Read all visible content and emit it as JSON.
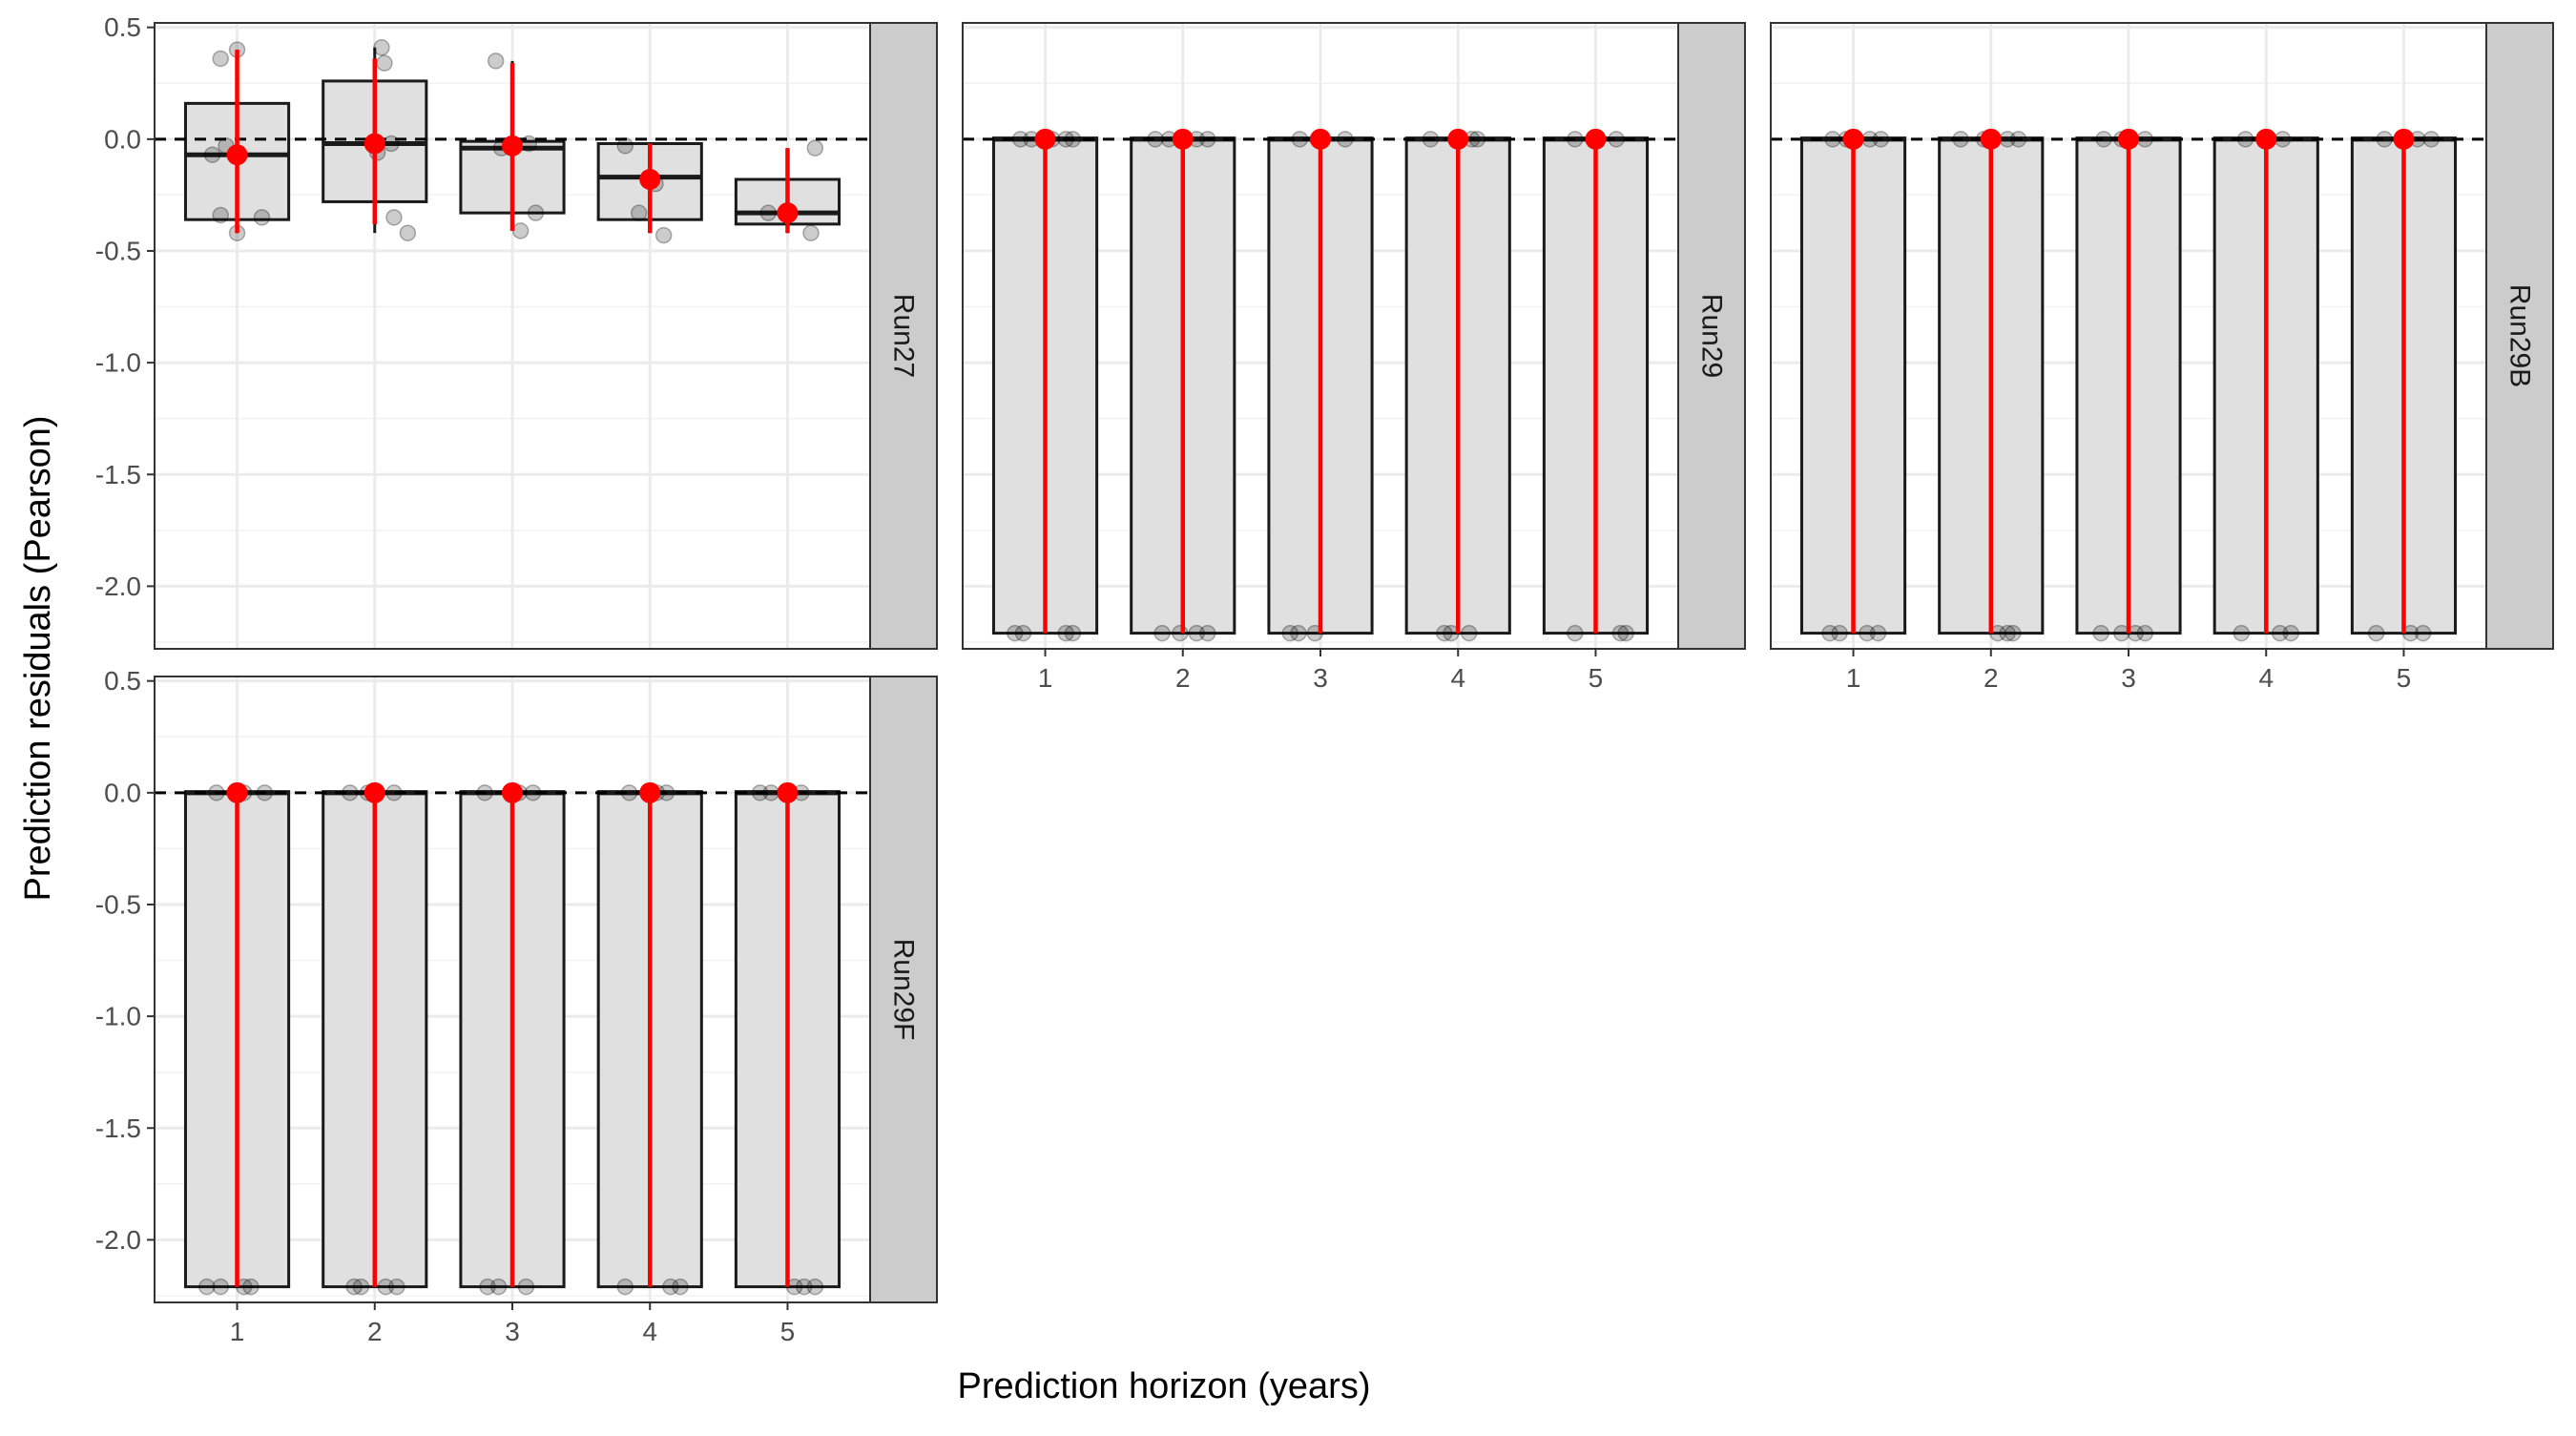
{
  "chart_data": {
    "type": "boxplot",
    "xlabel": "Prediction horizon (years)",
    "ylabel": "Prediction residuals (Pearson)",
    "x": [
      1,
      2,
      3,
      4,
      5
    ],
    "x_tick_labels": [
      "1",
      "2",
      "3",
      "4",
      "5"
    ],
    "ylim": [
      -2.28,
      0.52
    ],
    "y_ticks": [
      0.5,
      0.0,
      -0.5,
      -1.0,
      -1.5,
      -2.0
    ],
    "y_tick_labels": [
      "0.5",
      "0.0",
      "-0.5",
      "-1.0",
      "-1.5",
      "-2.0"
    ],
    "reference_line_y": 0,
    "grid": true,
    "colors": {
      "box_fill": "#e0e0e0",
      "box_stroke": "#1a1a1a",
      "mean_point": "#ff0000",
      "error_bar": "#ff0000",
      "points": "#000000",
      "strip_fill": "#cccccc",
      "grid": "#ebebeb"
    },
    "panels": [
      {
        "label": "Run27",
        "boxes": [
          {
            "x": 1,
            "q1": -0.36,
            "median": -0.07,
            "q3": 0.16,
            "whisker_low": -0.42,
            "whisker_high": 0.4
          },
          {
            "x": 2,
            "q1": -0.28,
            "median": -0.02,
            "q3": 0.26,
            "whisker_low": -0.42,
            "whisker_high": 0.41
          },
          {
            "x": 3,
            "q1": -0.33,
            "median": -0.04,
            "q3": -0.01,
            "whisker_low": -0.41,
            "whisker_high": 0.35
          },
          {
            "x": 4,
            "q1": -0.36,
            "median": -0.17,
            "q3": -0.02,
            "whisker_low": -0.42,
            "whisker_high": -0.02
          },
          {
            "x": 5,
            "q1": -0.38,
            "median": -0.33,
            "q3": -0.18,
            "whisker_low": -0.42,
            "whisker_high": -0.04
          }
        ],
        "means": [
          {
            "x": 1,
            "mean": -0.07,
            "low": -0.42,
            "high": 0.4
          },
          {
            "x": 2,
            "mean": -0.02,
            "low": -0.38,
            "high": 0.36
          },
          {
            "x": 3,
            "mean": -0.03,
            "low": -0.41,
            "high": 0.34
          },
          {
            "x": 4,
            "mean": -0.18,
            "low": -0.42,
            "high": -0.02
          },
          {
            "x": 5,
            "mean": -0.33,
            "low": -0.42,
            "high": -0.04
          }
        ],
        "points": [
          {
            "x": 0.88,
            "y": 0.36
          },
          {
            "x": 1.0,
            "y": 0.4
          },
          {
            "x": 0.82,
            "y": -0.07
          },
          {
            "x": 0.92,
            "y": -0.03
          },
          {
            "x": 0.88,
            "y": -0.34
          },
          {
            "x": 1.0,
            "y": -0.42
          },
          {
            "x": 1.18,
            "y": -0.35
          },
          {
            "x": 2.05,
            "y": 0.41
          },
          {
            "x": 2.07,
            "y": 0.34
          },
          {
            "x": 2.14,
            "y": -0.35
          },
          {
            "x": 2.24,
            "y": -0.42
          },
          {
            "x": 2.12,
            "y": -0.02
          },
          {
            "x": 2.02,
            "y": -0.06
          },
          {
            "x": 2.88,
            "y": 0.35
          },
          {
            "x": 2.92,
            "y": -0.04
          },
          {
            "x": 3.06,
            "y": -0.41
          },
          {
            "x": 3.17,
            "y": -0.33
          },
          {
            "x": 3.12,
            "y": -0.02
          },
          {
            "x": 3.82,
            "y": -0.03
          },
          {
            "x": 3.92,
            "y": -0.33
          },
          {
            "x": 4.1,
            "y": -0.43
          },
          {
            "x": 4.04,
            "y": -0.2
          },
          {
            "x": 4.86,
            "y": -0.33
          },
          {
            "x": 5.0,
            "y": -0.34
          },
          {
            "x": 5.17,
            "y": -0.42
          },
          {
            "x": 5.2,
            "y": -0.04
          }
        ]
      },
      {
        "label": "Run29",
        "boxes": [
          {
            "x": 1,
            "q1": -2.21,
            "median": 0.0,
            "q3": 0.005,
            "whisker_low": -2.21,
            "whisker_high": 0.005
          },
          {
            "x": 2,
            "q1": -2.21,
            "median": 0.0,
            "q3": 0.005,
            "whisker_low": -2.21,
            "whisker_high": 0.005
          },
          {
            "x": 3,
            "q1": -2.21,
            "median": 0.0,
            "q3": 0.005,
            "whisker_low": -2.21,
            "whisker_high": 0.005
          },
          {
            "x": 4,
            "q1": -2.21,
            "median": 0.0,
            "q3": 0.005,
            "whisker_low": -2.21,
            "whisker_high": 0.005
          },
          {
            "x": 5,
            "q1": -2.21,
            "median": 0.0,
            "q3": 0.005,
            "whisker_low": -2.21,
            "whisker_high": 0.005
          }
        ],
        "means": [
          {
            "x": 1,
            "mean": 0.0,
            "low": -2.21,
            "high": 0.0
          },
          {
            "x": 2,
            "mean": 0.0,
            "low": -2.21,
            "high": 0.0
          },
          {
            "x": 3,
            "mean": 0.0,
            "low": -2.21,
            "high": 0.0
          },
          {
            "x": 4,
            "mean": 0.0,
            "low": -2.21,
            "high": 0.0
          },
          {
            "x": 5,
            "mean": 0.0,
            "low": -2.21,
            "high": 0.0
          }
        ],
        "points": [
          {
            "x": 0.82,
            "y": 0.0
          },
          {
            "x": 0.9,
            "y": 0.0
          },
          {
            "x": 1.05,
            "y": 0.0
          },
          {
            "x": 1.15,
            "y": 0.0
          },
          {
            "x": 1.2,
            "y": 0.0
          },
          {
            "x": 0.78,
            "y": -2.21
          },
          {
            "x": 0.84,
            "y": -2.21
          },
          {
            "x": 1.15,
            "y": -2.21
          },
          {
            "x": 1.2,
            "y": -2.21
          },
          {
            "x": 1.8,
            "y": 0.0
          },
          {
            "x": 1.9,
            "y": 0.0
          },
          {
            "x": 2.1,
            "y": 0.0
          },
          {
            "x": 2.18,
            "y": 0.0
          },
          {
            "x": 1.85,
            "y": -2.21
          },
          {
            "x": 1.98,
            "y": -2.21
          },
          {
            "x": 2.1,
            "y": -2.21
          },
          {
            "x": 2.18,
            "y": -2.21
          },
          {
            "x": 2.85,
            "y": 0.0
          },
          {
            "x": 2.98,
            "y": 0.0
          },
          {
            "x": 3.18,
            "y": 0.0
          },
          {
            "x": 2.78,
            "y": -2.21
          },
          {
            "x": 2.84,
            "y": -2.21
          },
          {
            "x": 2.96,
            "y": -2.21
          },
          {
            "x": 3.8,
            "y": 0.0
          },
          {
            "x": 4.1,
            "y": 0.0
          },
          {
            "x": 4.14,
            "y": 0.0
          },
          {
            "x": 3.9,
            "y": -2.21
          },
          {
            "x": 3.95,
            "y": -2.21
          },
          {
            "x": 4.08,
            "y": -2.21
          },
          {
            "x": 4.85,
            "y": 0.0
          },
          {
            "x": 5.15,
            "y": 0.0
          },
          {
            "x": 4.85,
            "y": -2.21
          },
          {
            "x": 5.18,
            "y": -2.21
          },
          {
            "x": 5.22,
            "y": -2.21
          }
        ]
      },
      {
        "label": "Run29B",
        "boxes": [
          {
            "x": 1,
            "q1": -2.21,
            "median": 0.0,
            "q3": 0.005,
            "whisker_low": -2.21,
            "whisker_high": 0.005
          },
          {
            "x": 2,
            "q1": -2.21,
            "median": 0.0,
            "q3": 0.005,
            "whisker_low": -2.21,
            "whisker_high": 0.005
          },
          {
            "x": 3,
            "q1": -2.21,
            "median": 0.0,
            "q3": 0.005,
            "whisker_low": -2.21,
            "whisker_high": 0.005
          },
          {
            "x": 4,
            "q1": -2.21,
            "median": 0.0,
            "q3": 0.005,
            "whisker_low": -2.21,
            "whisker_high": 0.005
          },
          {
            "x": 5,
            "q1": -2.21,
            "median": 0.0,
            "q3": 0.005,
            "whisker_low": -2.21,
            "whisker_high": 0.005
          }
        ],
        "means": [
          {
            "x": 1,
            "mean": 0.0,
            "low": -2.21,
            "high": 0.0
          },
          {
            "x": 2,
            "mean": 0.0,
            "low": -2.21,
            "high": 0.0
          },
          {
            "x": 3,
            "mean": 0.0,
            "low": -2.21,
            "high": 0.0
          },
          {
            "x": 4,
            "mean": 0.0,
            "low": -2.21,
            "high": 0.0
          },
          {
            "x": 5,
            "mean": 0.0,
            "low": -2.21,
            "high": 0.0
          }
        ],
        "points": [
          {
            "x": 0.85,
            "y": 0.0
          },
          {
            "x": 0.95,
            "y": 0.0
          },
          {
            "x": 1.12,
            "y": 0.0
          },
          {
            "x": 1.2,
            "y": 0.0
          },
          {
            "x": 0.83,
            "y": -2.21
          },
          {
            "x": 0.9,
            "y": -2.21
          },
          {
            "x": 1.1,
            "y": -2.21
          },
          {
            "x": 1.18,
            "y": -2.21
          },
          {
            "x": 1.78,
            "y": 0.0
          },
          {
            "x": 1.95,
            "y": 0.0
          },
          {
            "x": 2.12,
            "y": 0.0
          },
          {
            "x": 2.2,
            "y": 0.0
          },
          {
            "x": 2.05,
            "y": -2.21
          },
          {
            "x": 2.12,
            "y": -2.21
          },
          {
            "x": 2.16,
            "y": -2.21
          },
          {
            "x": 2.82,
            "y": 0.0
          },
          {
            "x": 2.95,
            "y": 0.0
          },
          {
            "x": 3.12,
            "y": 0.0
          },
          {
            "x": 2.8,
            "y": -2.21
          },
          {
            "x": 2.95,
            "y": -2.21
          },
          {
            "x": 3.05,
            "y": -2.21
          },
          {
            "x": 3.12,
            "y": -2.21
          },
          {
            "x": 3.85,
            "y": 0.0
          },
          {
            "x": 4.02,
            "y": 0.0
          },
          {
            "x": 4.12,
            "y": 0.0
          },
          {
            "x": 3.82,
            "y": -2.21
          },
          {
            "x": 4.1,
            "y": -2.21
          },
          {
            "x": 4.18,
            "y": -2.21
          },
          {
            "x": 4.86,
            "y": 0.0
          },
          {
            "x": 5.1,
            "y": 0.0
          },
          {
            "x": 5.2,
            "y": 0.0
          },
          {
            "x": 4.8,
            "y": -2.21
          },
          {
            "x": 5.05,
            "y": -2.21
          },
          {
            "x": 5.14,
            "y": -2.21
          }
        ]
      },
      {
        "label": "Run29F",
        "boxes": [
          {
            "x": 1,
            "q1": -2.21,
            "median": 0.0,
            "q3": 0.005,
            "whisker_low": -2.21,
            "whisker_high": 0.005
          },
          {
            "x": 2,
            "q1": -2.21,
            "median": 0.0,
            "q3": 0.005,
            "whisker_low": -2.21,
            "whisker_high": 0.005
          },
          {
            "x": 3,
            "q1": -2.21,
            "median": 0.0,
            "q3": 0.005,
            "whisker_low": -2.21,
            "whisker_high": 0.005
          },
          {
            "x": 4,
            "q1": -2.21,
            "median": 0.0,
            "q3": 0.005,
            "whisker_low": -2.21,
            "whisker_high": 0.005
          },
          {
            "x": 5,
            "q1": -2.21,
            "median": 0.0,
            "q3": 0.005,
            "whisker_low": -2.21,
            "whisker_high": 0.005
          }
        ],
        "means": [
          {
            "x": 1,
            "mean": 0.0,
            "low": -2.21,
            "high": 0.0
          },
          {
            "x": 2,
            "mean": 0.0,
            "low": -2.21,
            "high": 0.0
          },
          {
            "x": 3,
            "mean": 0.0,
            "low": -2.21,
            "high": 0.0
          },
          {
            "x": 4,
            "mean": 0.0,
            "low": -2.21,
            "high": 0.0
          },
          {
            "x": 5,
            "mean": 0.0,
            "low": -2.21,
            "high": 0.0
          }
        ],
        "points": [
          {
            "x": 0.85,
            "y": 0.0
          },
          {
            "x": 1.05,
            "y": 0.0
          },
          {
            "x": 1.2,
            "y": 0.0
          },
          {
            "x": 0.78,
            "y": -2.21
          },
          {
            "x": 0.88,
            "y": -2.21
          },
          {
            "x": 1.05,
            "y": -2.21
          },
          {
            "x": 1.1,
            "y": -2.21
          },
          {
            "x": 1.82,
            "y": 0.0
          },
          {
            "x": 1.95,
            "y": 0.0
          },
          {
            "x": 2.14,
            "y": 0.0
          },
          {
            "x": 1.85,
            "y": -2.21
          },
          {
            "x": 1.9,
            "y": -2.21
          },
          {
            "x": 2.08,
            "y": -2.21
          },
          {
            "x": 2.16,
            "y": -2.21
          },
          {
            "x": 2.8,
            "y": 0.0
          },
          {
            "x": 3.05,
            "y": 0.0
          },
          {
            "x": 3.15,
            "y": 0.0
          },
          {
            "x": 2.82,
            "y": -2.21
          },
          {
            "x": 2.9,
            "y": -2.21
          },
          {
            "x": 3.1,
            "y": -2.21
          },
          {
            "x": 3.85,
            "y": 0.0
          },
          {
            "x": 4.05,
            "y": 0.0
          },
          {
            "x": 4.12,
            "y": 0.0
          },
          {
            "x": 3.82,
            "y": -2.21
          },
          {
            "x": 4.15,
            "y": -2.21
          },
          {
            "x": 4.22,
            "y": -2.21
          },
          {
            "x": 4.8,
            "y": 0.0
          },
          {
            "x": 4.88,
            "y": 0.0
          },
          {
            "x": 5.1,
            "y": 0.0
          },
          {
            "x": 5.05,
            "y": -2.21
          },
          {
            "x": 5.12,
            "y": -2.21
          },
          {
            "x": 5.2,
            "y": -2.21
          }
        ]
      }
    ]
  }
}
